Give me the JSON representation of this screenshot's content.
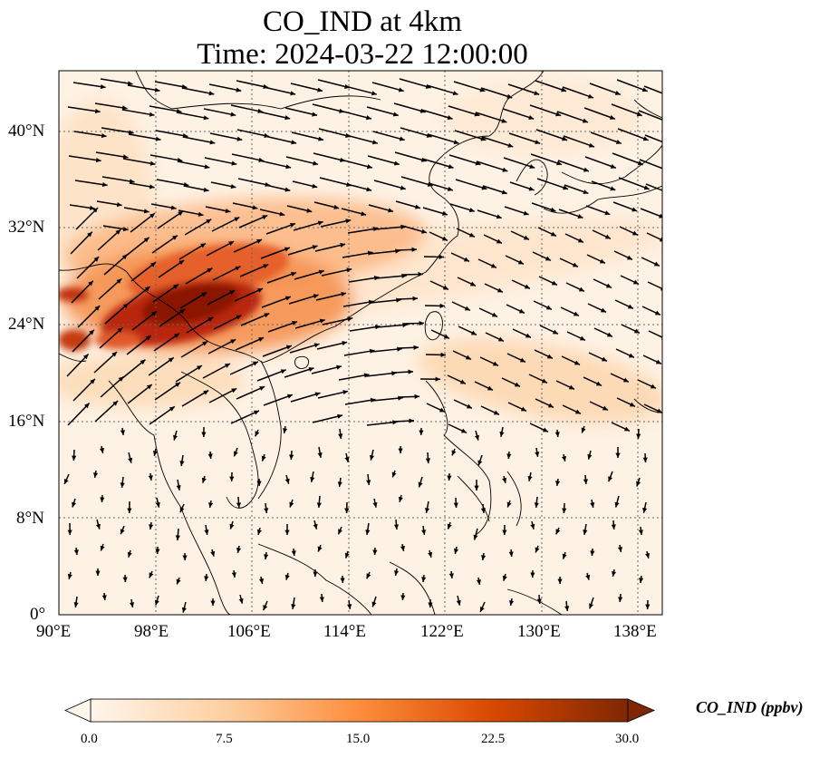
{
  "title_line1": "CO_IND at 4km",
  "title_line2": "Time: 2024-03-22 12:00:00",
  "map": {
    "lon_range": [
      90,
      140
    ],
    "lat_range": [
      0,
      45
    ],
    "lon_ticks": [
      "90°E",
      "98°E",
      "106°E",
      "114°E",
      "122°E",
      "130°E",
      "138°E"
    ],
    "lat_ticks": [
      "0°",
      "8°N",
      "16°N",
      "24°N",
      "32°N",
      "40°N"
    ],
    "gridlines": true,
    "field_colormap": [
      "#fff5eb",
      "#fdd0a2",
      "#fd8d3c",
      "#d94801",
      "#7f2704"
    ]
  },
  "colorbar": {
    "label": "CO_IND (ppbv)",
    "ticks": [
      "0.0",
      "7.5",
      "15.0",
      "22.5",
      "30.0"
    ],
    "min": 0,
    "max": 30,
    "extend": "both"
  }
}
